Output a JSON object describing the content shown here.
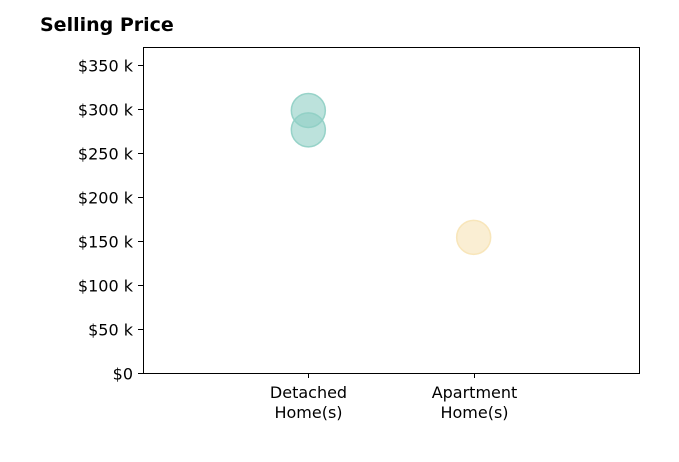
{
  "chart_data": {
    "type": "scatter",
    "title": "Selling Price",
    "xlabel": "",
    "ylabel": "",
    "categories": [
      "Detached\nHome(s)",
      "Apartment\nHome(s)"
    ],
    "points": [
      {
        "category": "Detached\nHome(s)",
        "value": 298000,
        "color": "#8fcfc4"
      },
      {
        "category": "Detached\nHome(s)",
        "value": 276000,
        "color": "#8fcfc4"
      },
      {
        "category": "Apartment\nHome(s)",
        "value": 154000,
        "color": "#f7e3b5"
      }
    ],
    "ylim": [
      0,
      370000
    ],
    "yticks": [
      {
        "value": 0,
        "label": "$0"
      },
      {
        "value": 50000,
        "label": "$50 k"
      },
      {
        "value": 100000,
        "label": "$100 k"
      },
      {
        "value": 150000,
        "label": "$150 k"
      },
      {
        "value": 200000,
        "label": "$200 k"
      },
      {
        "value": 250000,
        "label": "$250 k"
      },
      {
        "value": 300000,
        "label": "$300 k"
      },
      {
        "value": 350000,
        "label": "$350 k"
      }
    ],
    "grid": false,
    "legend": "none"
  }
}
